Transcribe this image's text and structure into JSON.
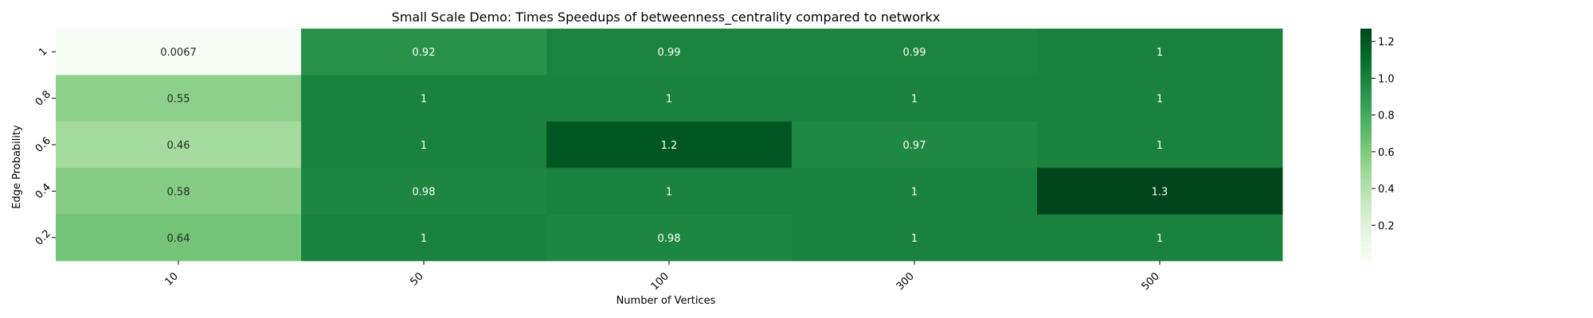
{
  "chart_data": {
    "type": "heatmap",
    "title": "Small Scale Demo: Times Speedups of betweenness_centrality compared to networkx",
    "xlabel": "Number of Vertices",
    "ylabel": "Edge Probability",
    "x_categories": [
      "10",
      "50",
      "100",
      "300",
      "500"
    ],
    "y_categories": [
      "1",
      "0.8",
      "0.6",
      "0.4",
      "0.2"
    ],
    "values": [
      [
        0.0067,
        0.92,
        0.99,
        0.99,
        1.0
      ],
      [
        0.55,
        1.0,
        1.0,
        1.0,
        1.0
      ],
      [
        0.46,
        1.0,
        1.2,
        0.97,
        1.0
      ],
      [
        0.58,
        0.98,
        1.0,
        1.0,
        1.3
      ],
      [
        0.64,
        1.0,
        0.98,
        1.0,
        1.0
      ]
    ],
    "cell_labels": [
      [
        "0.0067",
        "0.92",
        "0.99",
        "0.99",
        "1"
      ],
      [
        "0.55",
        "1",
        "1",
        "1",
        "1"
      ],
      [
        "0.46",
        "1",
        "1.2",
        "0.97",
        "1"
      ],
      [
        "0.58",
        "0.98",
        "1",
        "1",
        "1.3"
      ],
      [
        "0.64",
        "1",
        "0.98",
        "1",
        "1"
      ]
    ],
    "colormap": "Greens",
    "color_range": [
      0.0067,
      1.27
    ],
    "colorbar_ticks": [
      0.2,
      0.4,
      0.6,
      0.8,
      1.0,
      1.2
    ],
    "colorbar_tick_labels": [
      "0.2",
      "0.4",
      "0.6",
      "0.8",
      "1.0",
      "1.2"
    ],
    "colorbar_position": "right"
  }
}
